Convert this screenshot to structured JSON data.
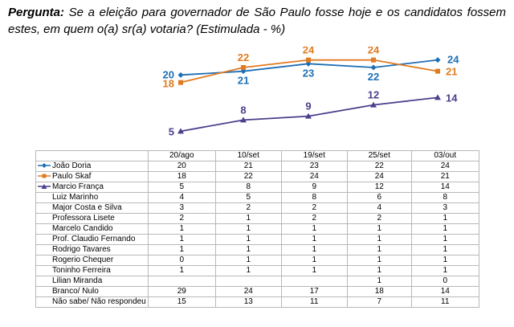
{
  "question": {
    "label": "Pergunta",
    "text": "Se a eleição para governador de São Paulo fosse hoje e os candidatos fossem estes, em quem o(a) sr(a) votaria? (Estimulada - %)"
  },
  "colors": {
    "joao": "#1f6fb5",
    "paulo": "#e07b22",
    "marcio": "#4b3f8c"
  },
  "chart_data": {
    "type": "line",
    "categories": [
      "20/ago",
      "10/set",
      "19/set",
      "25/set",
      "03/out"
    ],
    "series": [
      {
        "name": "João Doria",
        "values": [
          20,
          21,
          23,
          22,
          24
        ],
        "color": "#1f6fb5",
        "marker": "diamond"
      },
      {
        "name": "Paulo Skaf",
        "values": [
          18,
          22,
          24,
          24,
          21
        ],
        "color": "#e07b22",
        "marker": "square"
      },
      {
        "name": "Marcio França",
        "values": [
          5,
          8,
          9,
          12,
          14
        ],
        "color": "#4b3f8c",
        "marker": "triangle"
      }
    ],
    "ylim": [
      4,
      25
    ]
  },
  "table": {
    "headers": [
      "20/ago",
      "10/set",
      "19/set",
      "25/set",
      "03/out"
    ],
    "rows": [
      {
        "name": "João Doria",
        "values": [
          "20",
          "21",
          "23",
          "22",
          "24"
        ]
      },
      {
        "name": "Paulo Skaf",
        "values": [
          "18",
          "22",
          "24",
          "24",
          "21"
        ]
      },
      {
        "name": "Marcio França",
        "values": [
          "5",
          "8",
          "9",
          "12",
          "14"
        ]
      },
      {
        "name": "Luiz Marinho",
        "values": [
          "4",
          "5",
          "8",
          "6",
          "8"
        ]
      },
      {
        "name": "Major Costa e Silva",
        "values": [
          "3",
          "2",
          "2",
          "4",
          "3"
        ]
      },
      {
        "name": "Professora Lisete",
        "values": [
          "2",
          "1",
          "2",
          "2",
          "1"
        ]
      },
      {
        "name": "Marcelo Candido",
        "values": [
          "1",
          "1",
          "1",
          "1",
          "1"
        ]
      },
      {
        "name": "Prof. Claudio Fernando",
        "values": [
          "1",
          "1",
          "1",
          "1",
          "1"
        ]
      },
      {
        "name": "Rodrigo Tavares",
        "values": [
          "1",
          "1",
          "1",
          "1",
          "1"
        ]
      },
      {
        "name": "Rogerio Chequer",
        "values": [
          "0",
          "1",
          "1",
          "1",
          "1"
        ]
      },
      {
        "name": "Toninho Ferreira",
        "values": [
          "1",
          "1",
          "1",
          "1",
          "1"
        ]
      },
      {
        "name": "Lilian Miranda",
        "values": [
          "",
          "",
          "",
          "1",
          "0"
        ]
      },
      {
        "name": "Branco/ Nulo",
        "values": [
          "29",
          "24",
          "17",
          "18",
          "14"
        ]
      },
      {
        "name": "Não sabe/ Não respondeu",
        "values": [
          "15",
          "13",
          "11",
          "7",
          "11"
        ]
      }
    ]
  }
}
